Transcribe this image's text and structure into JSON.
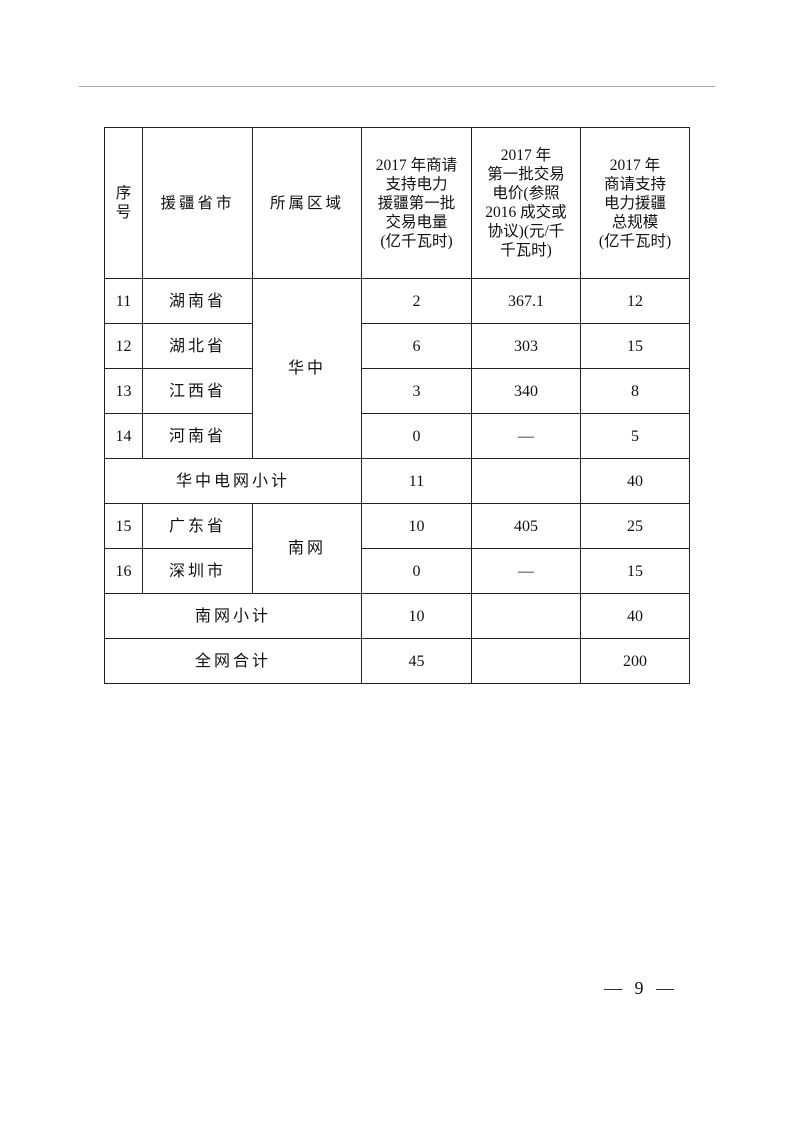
{
  "header": {
    "seq": [
      "序",
      "号"
    ],
    "province": [
      "援疆省市"
    ],
    "region": [
      "所属区域"
    ],
    "volume": [
      "2017 年商请",
      "支持电力",
      "援疆第一批",
      "交易电量",
      "(亿千瓦时)"
    ],
    "price": [
      "2017 年",
      "第一批交易",
      "电价(参照",
      "2016 成交或",
      "协议)(元/千",
      "千瓦时)"
    ],
    "total": [
      "2017 年",
      "商请支持",
      "电力援疆",
      "总规模",
      "(亿千瓦时)"
    ]
  },
  "rows": [
    {
      "seq": "11",
      "province": "湖南省",
      "volume": "2",
      "price": "367.1",
      "total": "12"
    },
    {
      "seq": "12",
      "province": "湖北省",
      "volume": "6",
      "price": "303",
      "total": "15"
    },
    {
      "seq": "13",
      "province": "江西省",
      "volume": "3",
      "price": "340",
      "total": "8"
    },
    {
      "seq": "14",
      "province": "河南省",
      "volume": "0",
      "price": "—",
      "total": "5"
    },
    {
      "subtotal": "华中电网小计",
      "volume": "11",
      "price": "",
      "total": "40"
    },
    {
      "seq": "15",
      "province": "广东省",
      "volume": "10",
      "price": "405",
      "total": "25"
    },
    {
      "seq": "16",
      "province": "深圳市",
      "volume": "0",
      "price": "—",
      "total": "15"
    },
    {
      "subtotal": "南网小计",
      "volume": "10",
      "price": "",
      "total": "40"
    },
    {
      "subtotal": "全网合计",
      "volume": "45",
      "price": "",
      "total": "200"
    }
  ],
  "regions": {
    "central": "华中",
    "south": "南网"
  },
  "page_number": "— 9 —"
}
